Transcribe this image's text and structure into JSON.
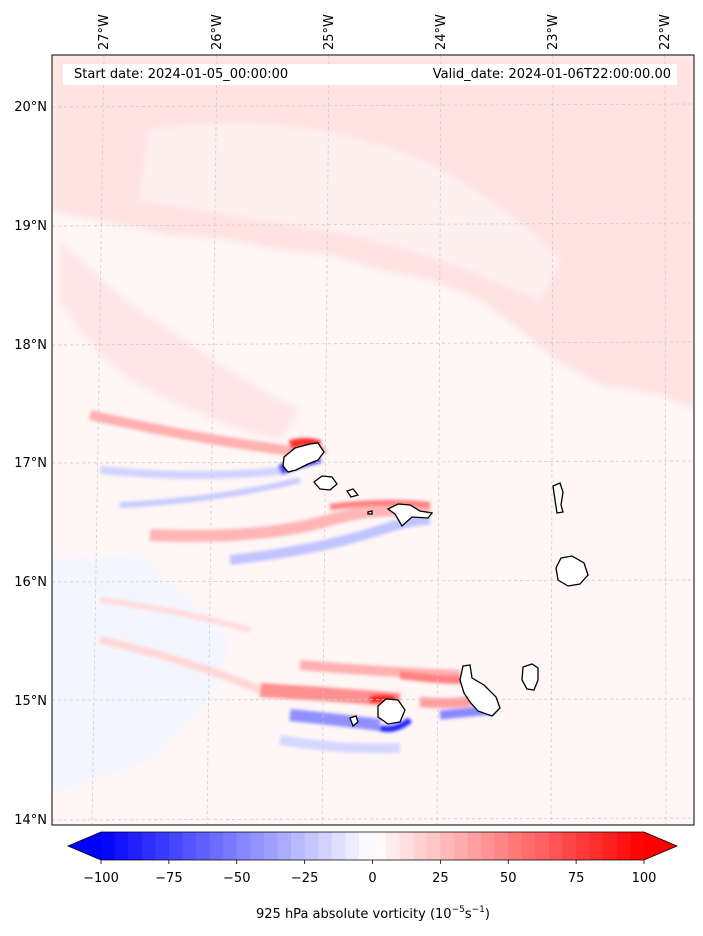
{
  "map": {
    "start_date": "Start date: 2024-01-05_00:00:00",
    "valid_date": "Valid_date: 2024-01-06T22:00:00.00",
    "lon_ticks": [
      "27°W",
      "26°W",
      "25°W",
      "24°W",
      "23°W",
      "22°W"
    ],
    "lat_ticks": [
      "20°N",
      "19°N",
      "18°N",
      "17°N",
      "16°N",
      "15°N",
      "14°N"
    ],
    "extent": {
      "lon_min": -27.35,
      "lon_max": -21.77,
      "lat_min": 13.95,
      "lat_max": 20.45
    }
  },
  "colorbar": {
    "ticks": [
      "−100",
      "−75",
      "−50",
      "−25",
      "0",
      "25",
      "50",
      "75",
      "100"
    ],
    "min": -100,
    "max": 100,
    "label_prefix": "925 hPa absolute vorticity (10",
    "label_exp1": "−5",
    "label_mid": "s",
    "label_exp2": "−1",
    "label_suffix": ")",
    "colormap": "bwr",
    "colors": {
      "neg": "#0000ff",
      "zero": "#ffffff",
      "pos": "#ff0000"
    }
  },
  "colors": {
    "coast": "#000000",
    "grid": "#cccccc"
  }
}
